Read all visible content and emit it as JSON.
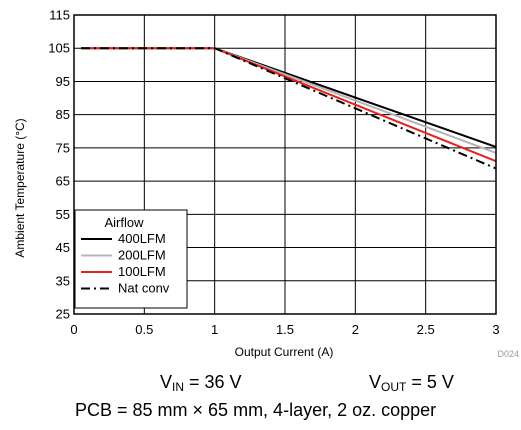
{
  "chart_data": {
    "type": "line",
    "xlabel": "Output Current (A)",
    "ylabel": "Ambient Temperature (°C)",
    "xlim": [
      0,
      3
    ],
    "ylim": [
      25,
      115
    ],
    "x_ticks": [
      "0",
      "0.5",
      "1",
      "1.5",
      "2",
      "2.5",
      "3"
    ],
    "y_ticks": [
      "25",
      "35",
      "45",
      "55",
      "65",
      "75",
      "85",
      "95",
      "105",
      "115"
    ],
    "grid": true,
    "legend_title": "Airflow",
    "legend_position": "bottom-left",
    "figure_id": "D024",
    "series": [
      {
        "name": "400LFM",
        "color": "#000000",
        "dash": "solid",
        "x": [
          0.05,
          1.0,
          3.0
        ],
        "y": [
          105,
          105,
          75.3
        ]
      },
      {
        "name": "200LFM",
        "color": "#b4b4b4",
        "dash": "solid",
        "x": [
          0.05,
          1.0,
          3.0
        ],
        "y": [
          105,
          105,
          73.5
        ]
      },
      {
        "name": "100LFM",
        "color": "#e8201c",
        "dash": "solid",
        "x": [
          0.05,
          1.0,
          3.0
        ],
        "y": [
          105,
          105,
          71.0
        ]
      },
      {
        "name": "Nat conv",
        "color": "#000000",
        "dash": "dashdot",
        "x": [
          0.05,
          1.0,
          3.0
        ],
        "y": [
          105,
          105,
          68.8
        ]
      }
    ]
  },
  "captions": {
    "vin_symbol": "V",
    "vin_sub": "IN",
    "vin_value": " = 36 V",
    "vout_symbol": "V",
    "vout_sub": "OUT",
    "vout_value": " = 5 V",
    "pcb": "PCB = 85 mm × 65 mm, 4-layer, 2 oz. copper"
  }
}
